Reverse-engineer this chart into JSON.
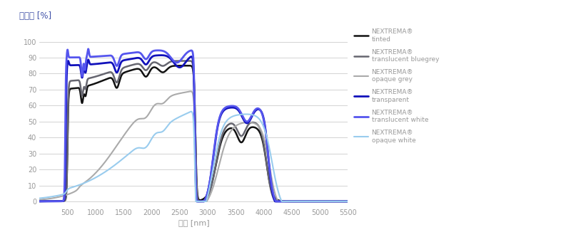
{
  "title_y": "투과율 [%]",
  "xlabel": "파장 [nm]",
  "xlim": [
    0,
    5500
  ],
  "ylim": [
    -3,
    108
  ],
  "yticks": [
    0,
    10,
    20,
    30,
    40,
    50,
    60,
    70,
    80,
    90,
    100
  ],
  "xticks": [
    0,
    500,
    1000,
    1500,
    2000,
    2500,
    3000,
    3500,
    4000,
    4500,
    5000,
    5500
  ],
  "legend_entries": [
    {
      "label1": "NEXTREMA®",
      "label2": "tinted",
      "color": "#111111",
      "lw": 1.8
    },
    {
      "label1": "NEXTREMA®",
      "label2": "translucent bluegrey",
      "color": "#666670",
      "lw": 1.8
    },
    {
      "label1": "NEXTREMA®",
      "label2": "opaque grey",
      "color": "#aaaaaa",
      "lw": 1.5
    },
    {
      "label1": "NEXTREMA®",
      "label2": "transparent",
      "color": "#1111bb",
      "lw": 2.0
    },
    {
      "label1": "NEXTREMA®",
      "label2": "translucent white",
      "color": "#5555ee",
      "lw": 2.0
    },
    {
      "label1": "NEXTREMA®",
      "label2": "opaque white",
      "color": "#99ccee",
      "lw": 1.5
    }
  ],
  "bg_color": "#ffffff",
  "grid_color": "#cccccc",
  "axis_label_color": "#999999",
  "tick_label_color": "#999999",
  "title_color": "#4455aa"
}
